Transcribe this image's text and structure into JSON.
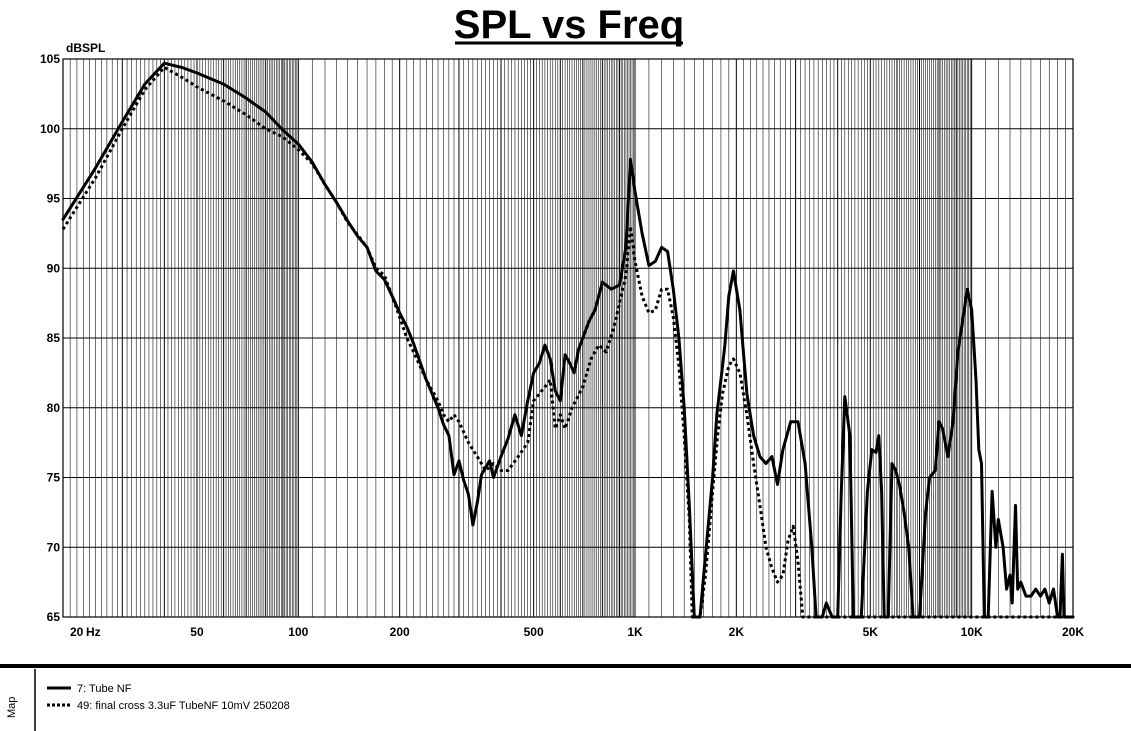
{
  "chart_data": {
    "type": "line",
    "title": "SPL vs Freq",
    "ylabel": "dBSPL",
    "xlabel": "",
    "x_scale": "log",
    "xlim": [
      20,
      20000
    ],
    "ylim": [
      65,
      105
    ],
    "grid": true,
    "x_ticks": [
      20,
      50,
      100,
      200,
      500,
      1000,
      2000,
      5000,
      10000,
      20000
    ],
    "x_tick_labels": [
      "20",
      "50",
      "100",
      "200",
      "500",
      "1K",
      "2K",
      "5K",
      "10K",
      "20K"
    ],
    "x_unit": "Hz",
    "y_ticks": [
      65,
      70,
      75,
      80,
      85,
      90,
      95,
      100,
      105
    ],
    "y_tick_labels": [
      "65",
      "70",
      "75",
      "80",
      "85",
      "90",
      "95",
      "100",
      "105"
    ],
    "legend_title": "Map",
    "legend_position": "bottom-left",
    "series": [
      {
        "name": "7: Tube NF",
        "style": "solid",
        "color": "#000000",
        "points": [
          [
            20,
            93.5
          ],
          [
            25,
            97.2
          ],
          [
            30,
            100.5
          ],
          [
            35,
            103.2
          ],
          [
            40,
            104.7
          ],
          [
            45,
            104.4
          ],
          [
            50,
            104.0
          ],
          [
            60,
            103.2
          ],
          [
            70,
            102.2
          ],
          [
            80,
            101.2
          ],
          [
            90,
            99.9
          ],
          [
            100,
            98.9
          ],
          [
            110,
            97.6
          ],
          [
            120,
            96.0
          ],
          [
            130,
            94.7
          ],
          [
            140,
            93.4
          ],
          [
            150,
            92.3
          ],
          [
            160,
            91.5
          ],
          [
            170,
            89.8
          ],
          [
            180,
            89.2
          ],
          [
            190,
            88.0
          ],
          [
            200,
            86.8
          ],
          [
            210,
            85.8
          ],
          [
            220,
            84.6
          ],
          [
            240,
            82.0
          ],
          [
            260,
            80.0
          ],
          [
            270,
            78.8
          ],
          [
            280,
            78.0
          ],
          [
            290,
            75.2
          ],
          [
            300,
            76.2
          ],
          [
            310,
            74.8
          ],
          [
            320,
            73.8
          ],
          [
            330,
            71.6
          ],
          [
            340,
            73.2
          ],
          [
            350,
            75.2
          ],
          [
            370,
            76.2
          ],
          [
            380,
            75.0
          ],
          [
            400,
            76.5
          ],
          [
            420,
            77.8
          ],
          [
            440,
            79.5
          ],
          [
            460,
            78.0
          ],
          [
            480,
            80.5
          ],
          [
            500,
            82.5
          ],
          [
            520,
            83.2
          ],
          [
            540,
            84.5
          ],
          [
            560,
            83.5
          ],
          [
            580,
            81.2
          ],
          [
            600,
            80.5
          ],
          [
            620,
            83.8
          ],
          [
            640,
            83.2
          ],
          [
            660,
            82.5
          ],
          [
            680,
            84.2
          ],
          [
            700,
            85.0
          ],
          [
            730,
            86.2
          ],
          [
            760,
            87.0
          ],
          [
            800,
            89.0
          ],
          [
            850,
            88.5
          ],
          [
            900,
            88.8
          ],
          [
            940,
            91.5
          ],
          [
            970,
            97.8
          ],
          [
            1000,
            95.5
          ],
          [
            1050,
            92.5
          ],
          [
            1100,
            90.2
          ],
          [
            1150,
            90.5
          ],
          [
            1200,
            91.5
          ],
          [
            1250,
            91.2
          ],
          [
            1300,
            88.5
          ],
          [
            1350,
            85.0
          ],
          [
            1400,
            80.0
          ],
          [
            1450,
            73.0
          ],
          [
            1500,
            65.0
          ],
          [
            1560,
            65.0
          ],
          [
            1600,
            68.0
          ],
          [
            1700,
            75.0
          ],
          [
            1750,
            79.5
          ],
          [
            1800,
            82.0
          ],
          [
            1850,
            84.5
          ],
          [
            1900,
            88.0
          ],
          [
            1960,
            89.8
          ],
          [
            2050,
            87.0
          ],
          [
            2150,
            81.0
          ],
          [
            2250,
            78.0
          ],
          [
            2350,
            76.5
          ],
          [
            2450,
            76.0
          ],
          [
            2550,
            76.5
          ],
          [
            2650,
            74.5
          ],
          [
            2750,
            77.0
          ],
          [
            2900,
            79.0
          ],
          [
            3050,
            79.0
          ],
          [
            3200,
            76.0
          ],
          [
            3350,
            70.0
          ],
          [
            3450,
            65.0
          ],
          [
            3600,
            65.0
          ],
          [
            3700,
            66.0
          ],
          [
            3850,
            65.0
          ],
          [
            4000,
            65.0
          ],
          [
            4100,
            74.0
          ],
          [
            4200,
            80.8
          ],
          [
            4350,
            78.0
          ],
          [
            4450,
            65.0
          ],
          [
            4700,
            65.0
          ],
          [
            4900,
            74.0
          ],
          [
            5050,
            77.0
          ],
          [
            5200,
            76.8
          ],
          [
            5300,
            78.0
          ],
          [
            5400,
            74.0
          ],
          [
            5500,
            65.0
          ],
          [
            5650,
            65.0
          ],
          [
            5800,
            76.0
          ],
          [
            5950,
            75.5
          ],
          [
            6100,
            74.5
          ],
          [
            6300,
            72.5
          ],
          [
            6500,
            70.0
          ],
          [
            6700,
            65.0
          ],
          [
            7000,
            65.0
          ],
          [
            7300,
            72.5
          ],
          [
            7500,
            75.0
          ],
          [
            7800,
            75.5
          ],
          [
            8000,
            79.0
          ],
          [
            8200,
            78.5
          ],
          [
            8500,
            76.5
          ],
          [
            8800,
            79.0
          ],
          [
            9100,
            84.0
          ],
          [
            9500,
            87.0
          ],
          [
            9700,
            88.5
          ],
          [
            10000,
            87.0
          ],
          [
            10300,
            82.0
          ],
          [
            10500,
            77.0
          ],
          [
            10700,
            76.0
          ],
          [
            10900,
            65.0
          ],
          [
            11200,
            65.0
          ],
          [
            11500,
            74.0
          ],
          [
            11800,
            70.0
          ],
          [
            12000,
            72.0
          ],
          [
            12400,
            70.0
          ],
          [
            12700,
            67.0
          ],
          [
            13000,
            68.0
          ],
          [
            13200,
            66.0
          ],
          [
            13500,
            73.0
          ],
          [
            13700,
            67.0
          ],
          [
            14000,
            67.5
          ],
          [
            14500,
            66.5
          ],
          [
            15000,
            66.5
          ],
          [
            15500,
            67.0
          ],
          [
            16000,
            66.5
          ],
          [
            16500,
            67.0
          ],
          [
            17000,
            66.0
          ],
          [
            17500,
            67.0
          ],
          [
            18000,
            65.0
          ],
          [
            18300,
            65.0
          ],
          [
            18600,
            69.5
          ],
          [
            18800,
            65.0
          ],
          [
            20000,
            65.0
          ]
        ]
      },
      {
        "name": "49: final cross 3.3uF TubeNF 10mV 250208",
        "style": "dotted",
        "color": "#000000",
        "points": [
          [
            20,
            92.8
          ],
          [
            25,
            96.5
          ],
          [
            30,
            100.0
          ],
          [
            35,
            102.8
          ],
          [
            40,
            104.4
          ],
          [
            45,
            103.7
          ],
          [
            50,
            103.0
          ],
          [
            60,
            102.0
          ],
          [
            70,
            101.0
          ],
          [
            80,
            100.0
          ],
          [
            90,
            99.4
          ],
          [
            100,
            98.5
          ],
          [
            110,
            97.5
          ],
          [
            120,
            96.0
          ],
          [
            130,
            94.7
          ],
          [
            140,
            93.3
          ],
          [
            150,
            92.4
          ],
          [
            160,
            91.5
          ],
          [
            170,
            90.0
          ],
          [
            180,
            89.5
          ],
          [
            190,
            88.0
          ],
          [
            200,
            86.5
          ],
          [
            210,
            85.0
          ],
          [
            220,
            84.0
          ],
          [
            240,
            82.0
          ],
          [
            260,
            80.5
          ],
          [
            270,
            79.5
          ],
          [
            280,
            79.0
          ],
          [
            290,
            79.5
          ],
          [
            300,
            79.0
          ],
          [
            320,
            77.5
          ],
          [
            340,
            76.5
          ],
          [
            360,
            75.5
          ],
          [
            380,
            76.0
          ],
          [
            400,
            75.5
          ],
          [
            420,
            75.5
          ],
          [
            450,
            76.5
          ],
          [
            480,
            77.5
          ],
          [
            500,
            80.5
          ],
          [
            520,
            81.0
          ],
          [
            540,
            81.5
          ],
          [
            560,
            82.0
          ],
          [
            580,
            78.5
          ],
          [
            600,
            79.5
          ],
          [
            620,
            78.5
          ],
          [
            650,
            80.0
          ],
          [
            700,
            81.5
          ],
          [
            740,
            83.5
          ],
          [
            780,
            84.5
          ],
          [
            820,
            84.0
          ],
          [
            860,
            85.5
          ],
          [
            900,
            87.5
          ],
          [
            940,
            89.5
          ],
          [
            970,
            93.0
          ],
          [
            1000,
            90.5
          ],
          [
            1050,
            88.0
          ],
          [
            1100,
            86.8
          ],
          [
            1150,
            87.0
          ],
          [
            1200,
            88.5
          ],
          [
            1250,
            88.5
          ],
          [
            1300,
            86.5
          ],
          [
            1350,
            83.0
          ],
          [
            1400,
            78.0
          ],
          [
            1450,
            72.0
          ],
          [
            1480,
            65.0
          ],
          [
            1560,
            65.0
          ],
          [
            1620,
            68.0
          ],
          [
            1700,
            74.0
          ],
          [
            1760,
            78.0
          ],
          [
            1820,
            81.0
          ],
          [
            1900,
            83.0
          ],
          [
            1960,
            83.5
          ],
          [
            2050,
            82.5
          ],
          [
            2150,
            79.5
          ],
          [
            2250,
            76.0
          ],
          [
            2350,
            73.0
          ],
          [
            2450,
            70.0
          ],
          [
            2550,
            68.5
          ],
          [
            2650,
            67.5
          ],
          [
            2750,
            68.0
          ],
          [
            2850,
            70.5
          ],
          [
            2950,
            71.5
          ],
          [
            3050,
            69.0
          ],
          [
            3150,
            65.0
          ],
          [
            20000,
            65.0
          ]
        ]
      }
    ]
  }
}
